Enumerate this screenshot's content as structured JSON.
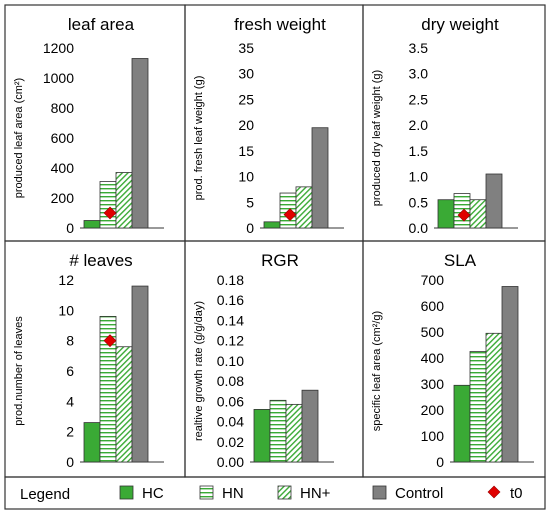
{
  "legend": {
    "title": "Legend",
    "items": [
      {
        "key": "HC",
        "label": "HC",
        "kind": "bar",
        "pattern": "solid-green"
      },
      {
        "key": "HN",
        "label": "HN",
        "kind": "bar",
        "pattern": "horizontal-stripes"
      },
      {
        "key": "HNplus",
        "label": "HN+",
        "kind": "bar",
        "pattern": "diagonal-stripes"
      },
      {
        "key": "Control",
        "label": "Control",
        "kind": "bar",
        "pattern": "solid-gray"
      },
      {
        "key": "t0",
        "label": "t0",
        "kind": "marker",
        "pattern": "red-diamond"
      }
    ]
  },
  "colors": {
    "hc": "#3aaa35",
    "hn_stripe": "#3aaa35",
    "control": "#808080",
    "t0": "#e00000",
    "border": "#333333"
  },
  "chart_data": [
    {
      "type": "bar",
      "title": "leaf area",
      "ylabel": "produced leaf area (cm²)",
      "ylim": [
        0,
        1200
      ],
      "yticks": [
        "0",
        "200",
        "400",
        "600",
        "800",
        "1000",
        "1200"
      ],
      "categories": [
        "HC",
        "HN",
        "HN+",
        "Control"
      ],
      "values": [
        50,
        310,
        370,
        1130
      ],
      "t0": 100
    },
    {
      "type": "bar",
      "title": "fresh weight",
      "ylabel": "prod. fresh leaf weight (g)",
      "ylim": [
        0,
        35
      ],
      "yticks": [
        "0",
        "5",
        "10",
        "15",
        "20",
        "25",
        "30",
        "35"
      ],
      "categories": [
        "HC",
        "HN",
        "HN+",
        "Control"
      ],
      "values": [
        1.2,
        6.8,
        8.0,
        19.5
      ],
      "t0": 2.6
    },
    {
      "type": "bar",
      "title": "dry weight",
      "ylabel": "produced dry leaf weight (g)",
      "ylim": [
        0,
        3.5
      ],
      "yticks": [
        "0.0",
        "0.5",
        "1.0",
        "1.5",
        "2.0",
        "2.5",
        "3.0",
        "3.5"
      ],
      "categories": [
        "HC",
        "HN",
        "HN+",
        "Control"
      ],
      "values": [
        0.55,
        0.67,
        0.55,
        1.05
      ],
      "t0": 0.25
    },
    {
      "type": "bar",
      "title": "# leaves",
      "ylabel": "prod.number of leaves",
      "ylim": [
        0,
        12
      ],
      "yticks": [
        "0",
        "2",
        "4",
        "6",
        "8",
        "10",
        "12"
      ],
      "categories": [
        "HC",
        "HN",
        "HN+",
        "Control"
      ],
      "values": [
        2.6,
        9.6,
        7.6,
        11.6
      ],
      "t0": 8.0
    },
    {
      "type": "bar",
      "title": "RGR",
      "ylabel": "realtive growth rate (g/g/day)",
      "ylim": [
        0,
        0.18
      ],
      "yticks": [
        "0.00",
        "0.02",
        "0.04",
        "0.06",
        "0.08",
        "0.10",
        "0.12",
        "0.14",
        "0.16",
        "0.18"
      ],
      "categories": [
        "HC",
        "HN",
        "HN+",
        "Control"
      ],
      "values": [
        0.052,
        0.061,
        0.057,
        0.071
      ],
      "t0": null
    },
    {
      "type": "bar",
      "title": "SLA",
      "ylabel": "specific leaf area (cm²/g)",
      "ylim": [
        0,
        700
      ],
      "yticks": [
        "0",
        "100",
        "200",
        "300",
        "400",
        "500",
        "600",
        "700"
      ],
      "categories": [
        "HC",
        "HN",
        "HN+",
        "Control"
      ],
      "values": [
        295,
        425,
        495,
        675
      ],
      "t0": null
    }
  ]
}
